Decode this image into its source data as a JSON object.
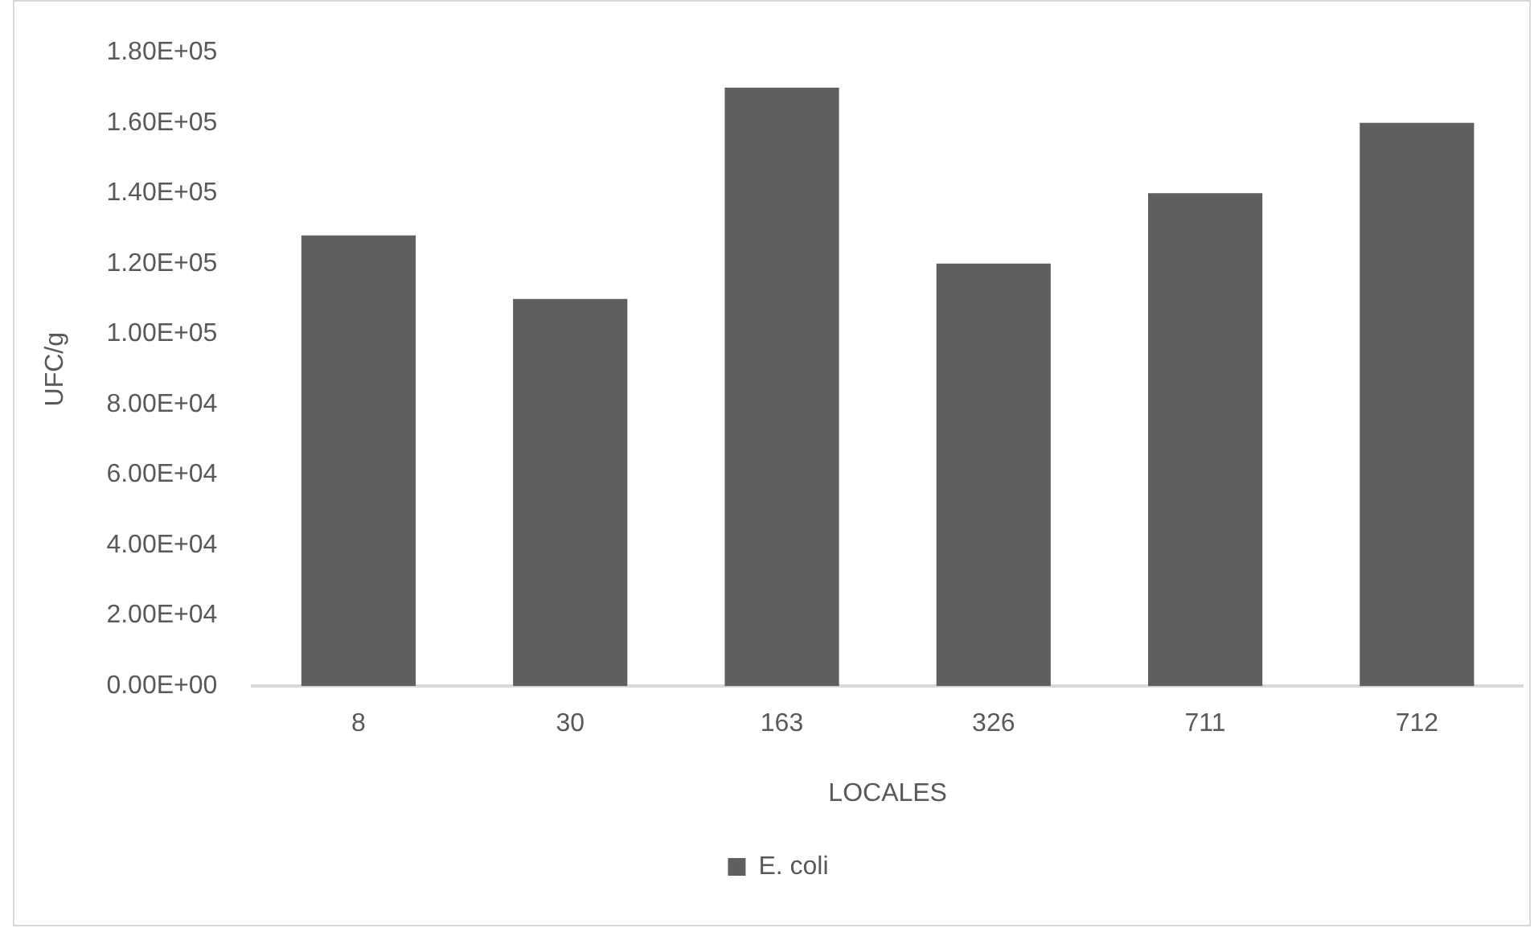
{
  "chart_data": {
    "type": "bar",
    "xlabel": "LOCALES",
    "ylabel": "UFC/g",
    "categories": [
      "8",
      "30",
      "163",
      "326",
      "711",
      "712"
    ],
    "series": [
      {
        "name": "E. coli",
        "color": "#5f5f5f",
        "values": [
          128000,
          110000,
          170000,
          120000,
          140000,
          160000
        ]
      }
    ],
    "ylim": [
      0,
      180000
    ],
    "yticks": [
      {
        "value": 0,
        "label": "0.00E+00"
      },
      {
        "value": 20000,
        "label": "2.00E+04"
      },
      {
        "value": 40000,
        "label": "4.00E+04"
      },
      {
        "value": 60000,
        "label": "6.00E+04"
      },
      {
        "value": 80000,
        "label": "8.00E+04"
      },
      {
        "value": 100000,
        "label": "1.00E+05"
      },
      {
        "value": 120000,
        "label": "1.20E+05"
      },
      {
        "value": 140000,
        "label": "1.40E+05"
      },
      {
        "value": 160000,
        "label": "1.60E+05"
      },
      {
        "value": 180000,
        "label": "1.80E+05"
      }
    ],
    "grid": false,
    "legend": "bottom"
  }
}
